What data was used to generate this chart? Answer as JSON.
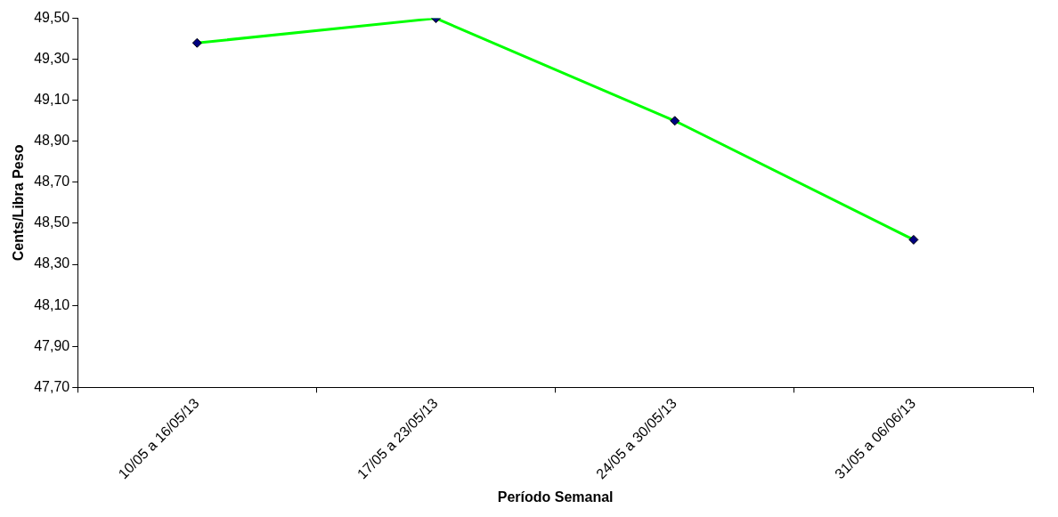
{
  "chart_data": {
    "type": "line",
    "xlabel": "Período Semanal",
    "ylabel": "Cents/Libra Peso",
    "categories": [
      "10/05 a 16/05/13",
      "17/05 a 23/05/13",
      "24/05 a 30/05/13",
      "31/05 a 06/06/13"
    ],
    "series": [
      {
        "color": "#00ff00",
        "values": [
          49.38,
          49.5,
          49.0,
          48.42
        ]
      }
    ],
    "ylim": [
      47.7,
      49.5
    ],
    "yticks": [
      {
        "value": 47.7,
        "label": "47,70"
      },
      {
        "value": 47.9,
        "label": "47,90"
      },
      {
        "value": 48.1,
        "label": "48,10"
      },
      {
        "value": 48.3,
        "label": "48,30"
      },
      {
        "value": 48.5,
        "label": "48,50"
      },
      {
        "value": 48.7,
        "label": "48,70"
      },
      {
        "value": 48.9,
        "label": "48,90"
      },
      {
        "value": 49.1,
        "label": "49,10"
      },
      {
        "value": 49.3,
        "label": "49,30"
      },
      {
        "value": 49.5,
        "label": "49,50"
      }
    ],
    "marker": "diamond",
    "line_style": "solid",
    "grid": false,
    "legend": false
  }
}
